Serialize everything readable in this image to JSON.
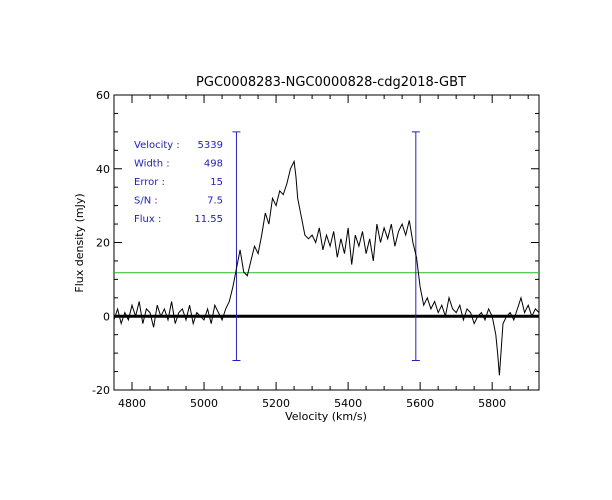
{
  "chart_data": {
    "type": "line",
    "title": "PGC0008283-NGC0000828-cdg2018-GBT",
    "xlabel": "Velocity (km/s)",
    "ylabel": "Flux density (mJy)",
    "xlim": [
      4750,
      5930
    ],
    "ylim": [
      -20,
      60
    ],
    "x_ticks": [
      4800,
      5000,
      5200,
      5400,
      5600,
      5800
    ],
    "y_ticks": [
      -20,
      0,
      20,
      40,
      60
    ],
    "grid": false,
    "colors": {
      "spectrum": "#000000",
      "markers": "#2222bb",
      "level": "#22bb22",
      "zero": "#000000",
      "text": "#2222bb"
    },
    "annotations": [
      {
        "label": "Velocity :",
        "value": "5339"
      },
      {
        "label": "Width :",
        "value": "498"
      },
      {
        "label": "Error :",
        "value": "15"
      },
      {
        "label": "S/N :",
        "value": "7.5"
      },
      {
        "label": "Flux :",
        "value": "11.55"
      }
    ],
    "markers": [
      {
        "x": 5090,
        "y_top": 50,
        "y_bottom": -12
      },
      {
        "x": 5588,
        "y_top": 50,
        "y_bottom": -12
      }
    ],
    "level_line": {
      "y": 11.8
    },
    "zero_line": {
      "y": 0
    },
    "series": [
      {
        "x": [
          4750,
          4760,
          4770,
          4780,
          4790,
          4800,
          4810,
          4820,
          4830,
          4840,
          4850,
          4860,
          4870,
          4880,
          4890,
          4900,
          4910,
          4920,
          4930,
          4940,
          4950,
          4960,
          4970,
          4980,
          4990,
          5000,
          5010,
          5020,
          5030,
          5040,
          5050,
          5060,
          5070,
          5080,
          5090,
          5100,
          5110,
          5120,
          5130,
          5140,
          5150,
          5160,
          5170,
          5180,
          5190,
          5200,
          5210,
          5220,
          5230,
          5240,
          5250,
          5255,
          5260,
          5270,
          5280,
          5290,
          5300,
          5310,
          5320,
          5330,
          5340,
          5350,
          5360,
          5370,
          5380,
          5390,
          5400,
          5410,
          5420,
          5430,
          5440,
          5450,
          5460,
          5470,
          5480,
          5490,
          5500,
          5510,
          5520,
          5530,
          5540,
          5550,
          5560,
          5570,
          5580,
          5590,
          5600,
          5610,
          5620,
          5630,
          5640,
          5650,
          5660,
          5670,
          5680,
          5690,
          5700,
          5710,
          5720,
          5730,
          5740,
          5750,
          5760,
          5770,
          5780,
          5790,
          5800,
          5810,
          5815,
          5820,
          5830,
          5840,
          5850,
          5860,
          5870,
          5880,
          5890,
          5900,
          5910,
          5920,
          5930
        ],
        "y": [
          -1,
          2,
          -2,
          1,
          -1,
          3,
          0,
          4,
          -2,
          2,
          1,
          -3,
          3,
          0,
          2,
          -1,
          4,
          -2,
          1,
          2,
          -1,
          3,
          -2,
          1,
          0,
          -1,
          2,
          -2,
          3,
          1,
          -1,
          2,
          4,
          8,
          13,
          18,
          12,
          11,
          15,
          19,
          17,
          22,
          28,
          25,
          32,
          30,
          34,
          33,
          36,
          40,
          42,
          38,
          32,
          27,
          22,
          21,
          22,
          20,
          24,
          18,
          22,
          19,
          23,
          16,
          21,
          17,
          24,
          14,
          22,
          19,
          23,
          17,
          21,
          15,
          25,
          20,
          24,
          21,
          25,
          19,
          23,
          25,
          22,
          26,
          20,
          16,
          8,
          3,
          5,
          2,
          4,
          1,
          3,
          0,
          5,
          2,
          1,
          3,
          -1,
          2,
          1,
          -2,
          0,
          1,
          -1,
          2,
          0,
          -5,
          -10,
          -16,
          -2,
          0,
          1,
          -1,
          2,
          5,
          1,
          3,
          0,
          2,
          1
        ]
      }
    ]
  }
}
